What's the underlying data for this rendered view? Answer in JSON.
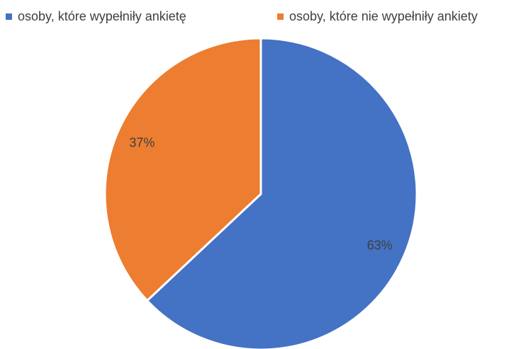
{
  "chart_data": {
    "type": "pie",
    "categories": [
      "osoby, które wypełniły ankietę",
      "osoby, które  nie wypełniły ankiety"
    ],
    "values": [
      63,
      37
    ],
    "labels": [
      "63%",
      "37%"
    ],
    "colors": [
      "#4472C4",
      "#ED7D31"
    ],
    "legend": "top",
    "start_angle": "12 o'clock",
    "direction": "clockwise"
  }
}
